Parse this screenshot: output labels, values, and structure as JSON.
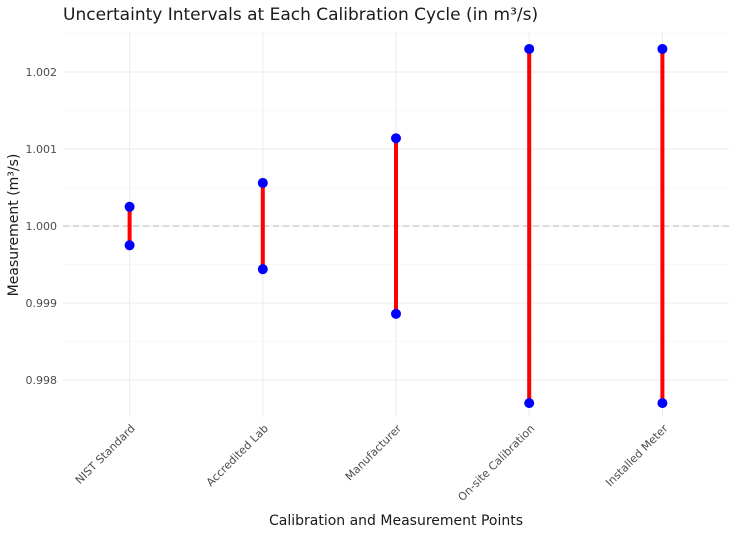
{
  "chart_data": {
    "type": "errorbar",
    "title": "Uncertainty Intervals at Each Calibration Cycle (in m³/s)",
    "xlabel": "Calibration and Measurement Points",
    "ylabel": "Measurement (m³/s)",
    "categories": [
      "NIST Standard",
      "Accredited Lab",
      "Manufacturer",
      "On-site Calibration",
      "Installed Meter"
    ],
    "lower": [
      0.99975,
      0.99944,
      0.99886,
      0.9977,
      0.9977
    ],
    "upper": [
      1.00025,
      1.00056,
      1.00114,
      1.0023,
      1.0023
    ],
    "reference_line": 1.0,
    "ylim": [
      0.99752,
      1.00252
    ],
    "yticks": [
      0.998,
      0.999,
      1.0,
      1.001,
      1.002
    ],
    "ytick_labels": [
      "0.998",
      "0.999",
      "1.000",
      "1.001",
      "1.002"
    ],
    "grid": true,
    "colors": {
      "interval": "#ff0000",
      "point": "#0000ff",
      "reference": "#bdbdbd"
    }
  }
}
